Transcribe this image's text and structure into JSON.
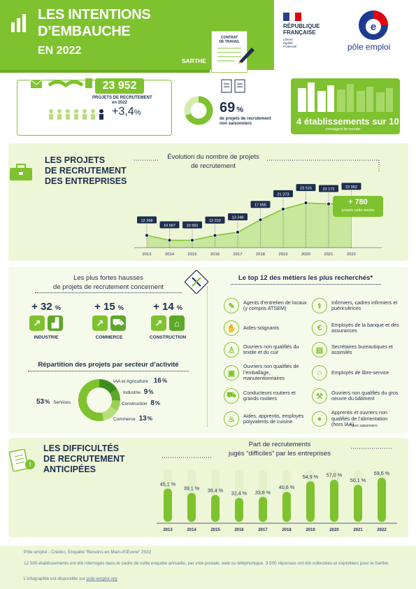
{
  "header": {
    "title_line1": "LES INTENTIONS",
    "title_line2": "D’EMBAUCHE",
    "year_line": "EN 2022",
    "region": "SARTHE",
    "contract_label_1": "CONTRAT",
    "contract_label_2": "DE TRAVAIL",
    "republique_1": "RÉPUBLIQUE",
    "republique_2": "FRANÇAISE",
    "motto_1": "Liberté",
    "motto_2": "Égalité",
    "motto_3": "Fraternité",
    "pole_emploi": "pôle emploi"
  },
  "kpis": {
    "total_projects": "23 952",
    "total_caption_1": "PROJETS DE RECRUTEMENT",
    "total_caption_2": "en 2022",
    "growth": "+3,4",
    "growth_unit": "%",
    "non_seasonal_pct": 69,
    "non_seasonal_value": "69",
    "non_seasonal_unit": "%",
    "non_seasonal_caption_1": "de projets de recrutement",
    "non_seasonal_caption_2": "non saisonniers",
    "establishments": "4 établissements sur 10",
    "establishments_caption": "envisagent de recruter"
  },
  "projects": {
    "heading_1": "LES PROJETS",
    "heading_2": "DE RECRUTEMENT",
    "heading_3": "DES ENTREPRISES",
    "chart_title_1": "Évolution du nombre de projets",
    "chart_title_2": "de recrutement",
    "delta": "+ 780",
    "delta_caption": "projets cette année"
  },
  "hausses": {
    "title_1": "Les plus fortes hausses",
    "title_2": "de projets de recrutement concernent",
    "items": [
      {
        "value": "+ 32",
        "unit": "%",
        "label": "INDUSTRIE"
      },
      {
        "value": "+ 15",
        "unit": "%",
        "label": "COMMERCE"
      },
      {
        "value": "+ 14",
        "unit": "%",
        "label": "CONSTRUCTION"
      }
    ]
  },
  "repartition": {
    "title": "Répartition des projets par secteur d’activité",
    "items": [
      {
        "label": "IAA et Agriculture",
        "value": "16",
        "unit": "%",
        "share": 16,
        "color": "#3e8e1f"
      },
      {
        "label": "Industrie",
        "value": "9",
        "unit": "%",
        "share": 9,
        "color": "#5ca82a"
      },
      {
        "label": "Construction",
        "value": "8",
        "unit": "%",
        "share": 8,
        "color": "#98d04f"
      },
      {
        "label": "Commerce",
        "value": "13",
        "unit": "%",
        "share": 13,
        "color": "#b7de7c"
      },
      {
        "label": "Services",
        "value": "53",
        "unit": "%",
        "share": 53,
        "color": "#7fc22f"
      }
    ]
  },
  "top12": {
    "title": "Le top 12 des métiers les plus recherchés*",
    "left": [
      "Agents d’entretien de locaux (y compris ATSEM)",
      "Aides-soignants",
      "Ouvriers non qualifiés du textile et du cuir",
      "Ouvriers non qualifiés de l’emballage, manutentionnaires",
      "Conducteurs routiers et grands routiers",
      "Aides, apprentis, employés polyvalents de cuisine"
    ],
    "right": [
      "Infirmiers, cadres infirmiers et puéricultrices",
      "Employés de la banque et des assurances",
      "Secrétaires bureautiques et assimilés",
      "Employés de libre-service",
      "Ouvriers non qualifiés du gros oeuvre du bâtiment",
      "Apprentis et ouvriers non qualifiés de l’alimentation (hors IAA)"
    ],
    "note": "* hors saisonniers"
  },
  "difficultes": {
    "heading_1": "LES DIFFICULTÉS",
    "heading_2": "DE RECRUTEMENT",
    "heading_3": "ANTICIPÉES",
    "chart_title_1": "Part de recrutements",
    "chart_title_2": "jugés “difficiles” par les entreprises"
  },
  "footer": {
    "line1": "Pôle emploi - Crédoc, Enquête “Besoins en Main-d’Œuvre” 2022",
    "line2": "12 500 établissements ont été interrogés dans le cadre de cette enquête annuelle, par voie postale, web ou téléphonique. 3 500 réponses ont été collectées et exploitées pour la Sarthe.",
    "line3": "L’infographie est disponible sur ",
    "link": "pole-emploi.org"
  },
  "chart_data": [
    {
      "type": "area",
      "title": "Évolution du nombre de projets de recrutement",
      "x": [
        "2013",
        "2014",
        "2015",
        "2016",
        "2017",
        "2018",
        "2019",
        "2020",
        "2021",
        "2022"
      ],
      "values": [
        12268,
        10567,
        10561,
        12222,
        13348,
        17655,
        21373,
        23515,
        23172,
        23952
      ],
      "labels": [
        "12 268",
        "10 567",
        "10 561",
        "12 222",
        "13 348",
        "17 655",
        "21 373",
        "23 515",
        "23 172",
        "23 952"
      ]
    },
    {
      "type": "bar",
      "title": "Part de recrutements jugés “difficiles” par les entreprises",
      "categories": [
        "2013",
        "2014",
        "2015",
        "2016",
        "2017",
        "2018",
        "2019",
        "2020",
        "2021",
        "2022"
      ],
      "values": [
        45.1,
        39.1,
        36.4,
        32.4,
        33.8,
        40.6,
        54.9,
        57.0,
        50.1,
        59.6
      ],
      "labels": [
        "45,1 %",
        "39,1 %",
        "36,4 %",
        "32,4 %",
        "33,8 %",
        "40,6 %",
        "54,9 %",
        "57,0 %",
        "50,1 %",
        "59,6 %"
      ],
      "unit": "%"
    }
  ]
}
